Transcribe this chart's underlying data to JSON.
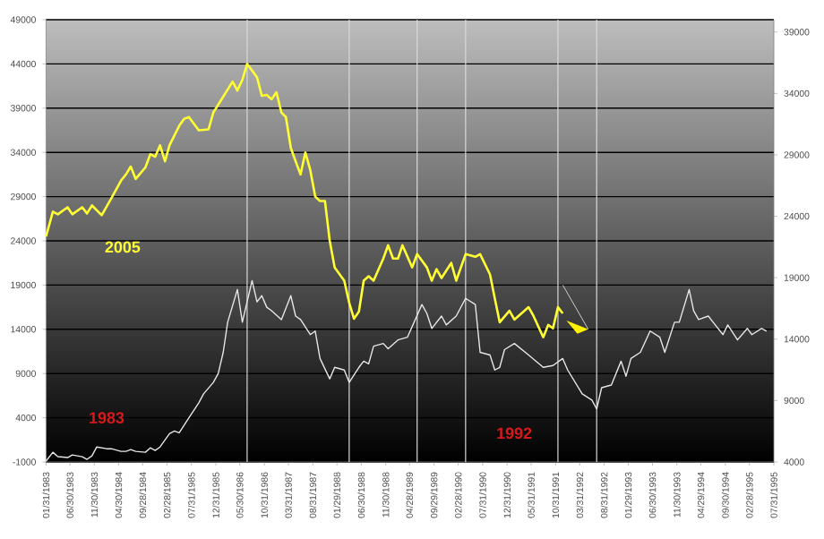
{
  "chart_data": {
    "type": "line",
    "series": [
      {
        "name": "2005",
        "color": "#ffff33",
        "x": [
          "1983-01-31",
          "1983-03",
          "1983-04",
          "1983-06",
          "1983-07",
          "1983-09",
          "1983-10",
          "1983-11",
          "1984-01",
          "1984-03",
          "1984-05",
          "1984-06",
          "1984-07",
          "1984-08",
          "1984-10",
          "1984-11",
          "1984-12",
          "1985-01",
          "1985-02",
          "1985-03",
          "1985-05",
          "1985-06",
          "1985-07",
          "1985-09",
          "1985-11",
          "1985-12",
          "1986-02",
          "1986-04",
          "1986-05",
          "1986-06",
          "1986-07",
          "1986-09",
          "1986-10",
          "1986-11",
          "1986-12",
          "1987-01",
          "1987-02",
          "1987-03",
          "1987-04",
          "1987-05",
          "1987-06",
          "1987-07",
          "1987-08",
          "1987-09",
          "1987-10",
          "1987-11",
          "1987-12",
          "1988-01",
          "1988-03",
          "1988-04",
          "1988-05",
          "1988-06",
          "1988-07",
          "1988-08",
          "1988-09",
          "1988-11",
          "1988-12",
          "1989-01",
          "1989-02",
          "1989-03",
          "1989-05",
          "1989-06",
          "1989-08",
          "1989-09",
          "1989-10",
          "1989-11",
          "1990-01",
          "1990-02",
          "1990-04",
          "1990-06",
          "1990-07",
          "1990-09",
          "1990-10",
          "1990-11",
          "1991-01",
          "1991-02",
          "1991-05",
          "1991-06",
          "1991-08",
          "1991-09",
          "1991-10",
          "1991-11",
          "1991-12"
        ],
        "values": [
          24500,
          27300,
          27000,
          27800,
          27000,
          27800,
          27100,
          28000,
          26900,
          28800,
          30800,
          31500,
          32400,
          31000,
          32300,
          33800,
          33500,
          34800,
          33000,
          34800,
          37000,
          37800,
          38000,
          36500,
          36600,
          38500,
          40300,
          42000,
          41000,
          42200,
          44000,
          42500,
          40400,
          40500,
          40000,
          40800,
          38500,
          38000,
          34500,
          33000,
          31500,
          34000,
          32000,
          29000,
          28500,
          28500,
          24000,
          21000,
          19500,
          17000,
          15200,
          16000,
          19500,
          20000,
          19500,
          22000,
          23500,
          22000,
          22000,
          23500,
          21000,
          22500,
          21000,
          19500,
          20800,
          19800,
          21500,
          19500,
          22500,
          22200,
          22500,
          20200,
          17500,
          14800,
          16100,
          15100,
          16500,
          15500,
          13100,
          14500,
          14100,
          16500,
          15800
        ]
      },
      {
        "color": "#e6e6e6",
        "x": [
          "1983-01-31",
          "1983-03",
          "1983-04",
          "1983-06",
          "1983-07",
          "1983-09",
          "1983-10",
          "1983-11",
          "1983-12",
          "1984-02",
          "1984-03",
          "1984-05",
          "1984-06",
          "1984-07",
          "1984-08",
          "1984-10",
          "1984-11",
          "1984-12",
          "1985-01",
          "1985-03",
          "1985-04",
          "1985-05",
          "1985-07",
          "1985-09",
          "1985-10",
          "1985-12",
          "1986-01",
          "1986-02",
          "1986-03",
          "1986-05",
          "1986-06",
          "1986-08",
          "1986-09",
          "1986-10",
          "1986-11",
          "1986-12",
          "1987-02",
          "1987-04",
          "1987-05",
          "1987-06",
          "1987-08",
          "1987-09",
          "1987-10",
          "1987-12",
          "1988-01",
          "1988-03",
          "1988-04",
          "1988-06",
          "1988-07",
          "1988-08",
          "1988-09",
          "1988-11",
          "1988-12",
          "1989-02",
          "1989-04",
          "1989-07",
          "1989-08",
          "1989-09",
          "1989-11",
          "1989-12",
          "1990-02",
          "1990-04",
          "1990-06",
          "1990-07",
          "1990-09",
          "1990-10",
          "1990-11",
          "1990-12",
          "1991-02",
          "1991-05",
          "1991-08",
          "1991-10",
          "1991-12",
          "1992-01",
          "1992-04",
          "1992-06",
          "1992-07",
          "1992-08",
          "1992-10",
          "1992-12",
          "1993-01",
          "1993-02",
          "1993-04",
          "1993-06",
          "1993-08",
          "1993-09",
          "1993-11",
          "1993-12",
          "1994-02",
          "1994-03",
          "1994-04",
          "1994-06",
          "1994-07",
          "1994-09",
          "1994-10",
          "1994-12",
          "1995-02",
          "1995-03",
          "1995-05",
          "1995-06"
        ],
        "values": [
          -900,
          100,
          -400,
          -500,
          -200,
          -400,
          -700,
          -300,
          700,
          500,
          500,
          200,
          200,
          400,
          200,
          100,
          600,
          300,
          700,
          2200,
          2500,
          2300,
          4000,
          5700,
          6700,
          8000,
          9000,
          11400,
          14800,
          18500,
          14800,
          19500,
          17100,
          17800,
          16500,
          16100,
          15100,
          17800,
          15500,
          15100,
          13400,
          13800,
          10700,
          8400,
          9700,
          9400,
          8000,
          9700,
          10400,
          10100,
          12100,
          12400,
          11800,
          12800,
          13100,
          16800,
          15800,
          14100,
          15500,
          14500,
          15500,
          17500,
          16800,
          11400,
          11100,
          9400,
          9700,
          11700,
          12400,
          11100,
          9700,
          9900,
          10700,
          9400,
          6700,
          6000,
          5000,
          7400,
          7700,
          10400,
          8700,
          10700,
          11400,
          13800,
          13100,
          11400,
          14800,
          14800,
          18500,
          16100,
          15100,
          15500,
          14800,
          13400,
          14500,
          12800,
          14100,
          13400,
          14100,
          13800
        ]
      }
    ],
    "xlim": [
      "1983-01-31",
      "1995-07-31"
    ],
    "xticks": [
      {
        "value": "1983-01-31",
        "label": "01/31/1983"
      },
      {
        "value": "1983-06-30",
        "label": "06/30/1983"
      },
      {
        "value": "1983-11-30",
        "label": "11/30/1983"
      },
      {
        "value": "1984-04-30",
        "label": "04/30/1984"
      },
      {
        "value": "1984-09-28",
        "label": "09/28/1984"
      },
      {
        "value": "1985-02-28",
        "label": "02/28/1985"
      },
      {
        "value": "1985-07-31",
        "label": "07/31/1985"
      },
      {
        "value": "1985-12-31",
        "label": "12/31/1985"
      },
      {
        "value": "1986-05-30",
        "label": "05/30/1986"
      },
      {
        "value": "1986-10-31",
        "label": "10/31/1986"
      },
      {
        "value": "1987-03-31",
        "label": "03/31/1987"
      },
      {
        "value": "1987-08-31",
        "label": "08/31/1987"
      },
      {
        "value": "1988-01-29",
        "label": "01/29/1988"
      },
      {
        "value": "1988-06-30",
        "label": "06/30/1988"
      },
      {
        "value": "1988-11-30",
        "label": "11/30/1988"
      },
      {
        "value": "1989-04-28",
        "label": "04/28/1989"
      },
      {
        "value": "1989-09-29",
        "label": "09/29/1989"
      },
      {
        "value": "1990-02-28",
        "label": "02/28/1990"
      },
      {
        "value": "1990-07-31",
        "label": "07/31/1990"
      },
      {
        "value": "1990-12-31",
        "label": "12/31/1990"
      },
      {
        "value": "1991-05-31",
        "label": "05/31/1991"
      },
      {
        "value": "1991-10-31",
        "label": "10/31/1991"
      },
      {
        "value": "1992-03-31",
        "label": "03/31/1992"
      },
      {
        "value": "1992-08-31",
        "label": "08/31/1992"
      },
      {
        "value": "1993-01-29",
        "label": "01/29/1993"
      },
      {
        "value": "1993-06-30",
        "label": "06/30/1993"
      },
      {
        "value": "1993-11-30",
        "label": "11/30/1993"
      },
      {
        "value": "1994-04-29",
        "label": "04/29/1994"
      },
      {
        "value": "1994-09-30",
        "label": "09/30/1994"
      },
      {
        "value": "1995-02-28",
        "label": "02/28/1995"
      },
      {
        "value": "1995-07-31",
        "label": "07/31/1995"
      }
    ],
    "ylim": [
      -1000,
      49000
    ],
    "yticks": [
      -1000,
      4000,
      9000,
      14000,
      19000,
      24000,
      29000,
      34000,
      39000,
      44000,
      49000
    ],
    "y2lim": [
      4000,
      40000
    ],
    "y2ticks": [
      4000,
      9000,
      14000,
      19000,
      24000,
      29000,
      34000,
      39000
    ],
    "grid": "y",
    "ref_lines": [
      {
        "axis": "x",
        "value": "1986-07",
        "color": "#d9d9d9"
      },
      {
        "axis": "x",
        "value": "1988-04",
        "color": "#d9d9d9"
      },
      {
        "axis": "x",
        "value": "1989-06",
        "color": "#d9d9d9"
      },
      {
        "axis": "x",
        "value": "1990-04",
        "color": "#d9d9d9"
      },
      {
        "axis": "x",
        "value": "1991-11",
        "color": "#d9d9d9"
      },
      {
        "axis": "x",
        "value": "1992-07",
        "color": "#d9d9d9"
      }
    ],
    "annotations": [
      "1983",
      "1992"
    ]
  }
}
